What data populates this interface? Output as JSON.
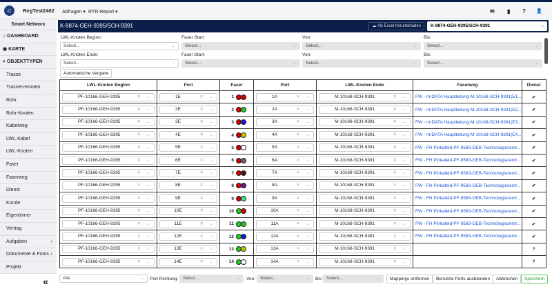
{
  "header": {
    "brand": "RegTest2402",
    "menus": [
      "Abfragen ▾",
      "RTR Report ▾"
    ],
    "icons": [
      "envelope-icon",
      "database-icon",
      "help-icon",
      "user-icon"
    ],
    "icon_glyphs": [
      "✉",
      "▮",
      "?",
      "👤"
    ]
  },
  "sidebar": {
    "title": "Smart Networx",
    "main": [
      {
        "icon": "⌂",
        "label": "DASHBOARD"
      },
      {
        "icon": "◉",
        "label": "KARTE"
      },
      {
        "icon": "⌕",
        "label": "OBJEKTTYPEN"
      }
    ],
    "items": [
      "Trasse",
      "Trassen-Knoten",
      "Rohr",
      "Rohr-Knoten",
      "Kabelweg",
      "LWL-Kabel",
      "LWL-Knoten",
      "Faser",
      "Faserweg",
      "Dienst",
      "Kunde",
      "Eigentümer",
      "Vertrag",
      "Aufgaben",
      "Dokumente & Fotos",
      "Projekt"
    ],
    "collapse": "«"
  },
  "titlebar": {
    "title": "K-9874-GEH-9395/SCH-9391",
    "excel": "☁ Als Excel herunterladen",
    "selected": "K-9874-GEH-9395/SCH-9391"
  },
  "filters": {
    "begin_label": "LWL-Knoten Beginn:",
    "end_label": "LWL-Knoten Ende:",
    "faser_label": "Faser Start:",
    "von_label": "Von:",
    "bis_label": "Bis:",
    "placeholder": "Select...",
    "auto": "Automatische Vergabe"
  },
  "table": {
    "headers": [
      "LWL-Knoten Beginn",
      "Port",
      "Faser",
      "Port",
      "LWL-Knoten Ende",
      "Faserweg",
      "Dienst"
    ],
    "rows": [
      {
        "begin": "PF-10166-GEH-9395",
        "port1": "1E",
        "n": "1",
        "c": [
          "#d00000",
          "#d00000"
        ],
        "port2": "1A",
        "end": "M-10168-SCH-9391",
        "fw": "FW - rmDATA Hauptleitung-M-10168-SCH-9391(E1...",
        "d": "✔"
      },
      {
        "begin": "PF-10166-GEH-9395",
        "port1": "2E",
        "n": "2",
        "c": [
          "#d00000",
          "#22cc22"
        ],
        "port2": "2A",
        "end": "M-10168-SCH-9391",
        "fw": "FW - rmDATA Hauptleitung-M-10168-SCH-9391(E2...",
        "d": "✔"
      },
      {
        "begin": "PF-10166-GEH-9395",
        "port1": "3E",
        "n": "3",
        "c": [
          "#d00000",
          "#0a1ed6"
        ],
        "port2": "3A",
        "end": "M-10168-SCH-9391",
        "fw": "FW - rmDATA Hauptleitung-M-10168-SCH-9391(E3...",
        "d": "✔"
      },
      {
        "begin": "PF-10166-GEH-9395",
        "port1": "4E",
        "n": "4",
        "c": [
          "#d00000",
          "#d4c400"
        ],
        "port2": "4A",
        "end": "M-10168-SCH-9391",
        "fw": "FW - rmDATA Hauptleitung-M-10168-SCH-9391(E4...",
        "d": "✔"
      },
      {
        "begin": "PF-10166-GEH-9395",
        "port1": "5E",
        "n": "5",
        "c": [
          "#d00000",
          "#ffffff"
        ],
        "port2": "5A",
        "end": "M-10168-SCH-9391",
        "fw": "FW - FH Pinkafeld-PF-9583-GEB-Technologiezentr...",
        "d": "✔"
      },
      {
        "begin": "PF-10166-GEH-9395",
        "port1": "6E",
        "n": "6",
        "c": [
          "#d00000",
          "#666666"
        ],
        "port2": "6A",
        "end": "M-10168-SCH-9391",
        "fw": "FW - FH Pinkafeld-PF-9583-GEB-Technologiezentr...",
        "d": "✔"
      },
      {
        "begin": "PF-10166-GEH-9395",
        "port1": "7E",
        "n": "7",
        "c": [
          "#d00000",
          "#4a1a0a"
        ],
        "port2": "7A",
        "end": "M-10168-SCH-9391",
        "fw": "FW - FH Pinkafeld-PF-9583-GEB-Technologiezentr...",
        "d": "✔"
      },
      {
        "begin": "PF-10166-GEH-9395",
        "port1": "8E",
        "n": "8",
        "c": [
          "#d00000",
          "#5a1a8a"
        ],
        "port2": "8A",
        "end": "M-10168-SCH-9391",
        "fw": "FW - FH Pinkafeld-PF-9583-GEB-Technologiezentr...",
        "d": "✔"
      },
      {
        "begin": "PF-10166-GEH-9395",
        "port1": "9E",
        "n": "9",
        "c": [
          "#d00000",
          "#40e090"
        ],
        "port2": "9A",
        "end": "M-10168-SCH-9391",
        "fw": "FW - FH Pinkafeld-PF-9583-GEB-Technologiezentr...",
        "d": "✔"
      },
      {
        "begin": "PF-10166-GEH-9395",
        "port1": "10E",
        "n": "10",
        "c": [
          "#22cc22",
          "#d00000"
        ],
        "port2": "10A",
        "end": "M-10168-SCH-9391",
        "fw": "FW - FH Pinkafeld-PF-9583-GEB-Technologiezentr...",
        "d": "✔"
      },
      {
        "begin": "PF-10166-GEH-9395",
        "port1": "11E",
        "n": "11",
        "c": [
          "#22cc22",
          "#22cc22"
        ],
        "port2": "11A",
        "end": "M-10168-SCH-9391",
        "fw": "FW - FH Pinkafeld-PF-9583-GEB-Technologiezentr...",
        "d": "✔"
      },
      {
        "begin": "PF-10166-GEH-9395",
        "port1": "12E",
        "n": "12",
        "c": [
          "#22cc22",
          "#0a1ed6"
        ],
        "port2": "12A",
        "end": "M-10168-SCH-9391",
        "fw": "FW - FH Pinkafeld-PF-9583-GEB-Technologiezentr...",
        "d": "✔"
      },
      {
        "begin": "PF-10166-GEH-9395",
        "port1": "13E",
        "n": "13",
        "c": [
          "#22cc22",
          "#d4c400"
        ],
        "port2": "13A",
        "end": "M-10168-SCH-9391",
        "fw": "",
        "d": "?"
      },
      {
        "begin": "PF-10166-GEH-9395",
        "port1": "14E",
        "n": "14",
        "c": [
          "#22cc22",
          "#ffffff"
        ],
        "port2": "14A",
        "end": "M-10168-SCH-9391",
        "fw": "",
        "d": "?"
      }
    ]
  },
  "bottom": {
    "filter": "Alle",
    "port_richtung": "Port Richtung:",
    "von": "Von:",
    "bis": "Bis:",
    "placeholder": "Select...",
    "remove": "Mappings entfernen",
    "hide": "Benutzte Ports ausblenden",
    "cancel": "Abbrechen",
    "save": "Speichern"
  }
}
